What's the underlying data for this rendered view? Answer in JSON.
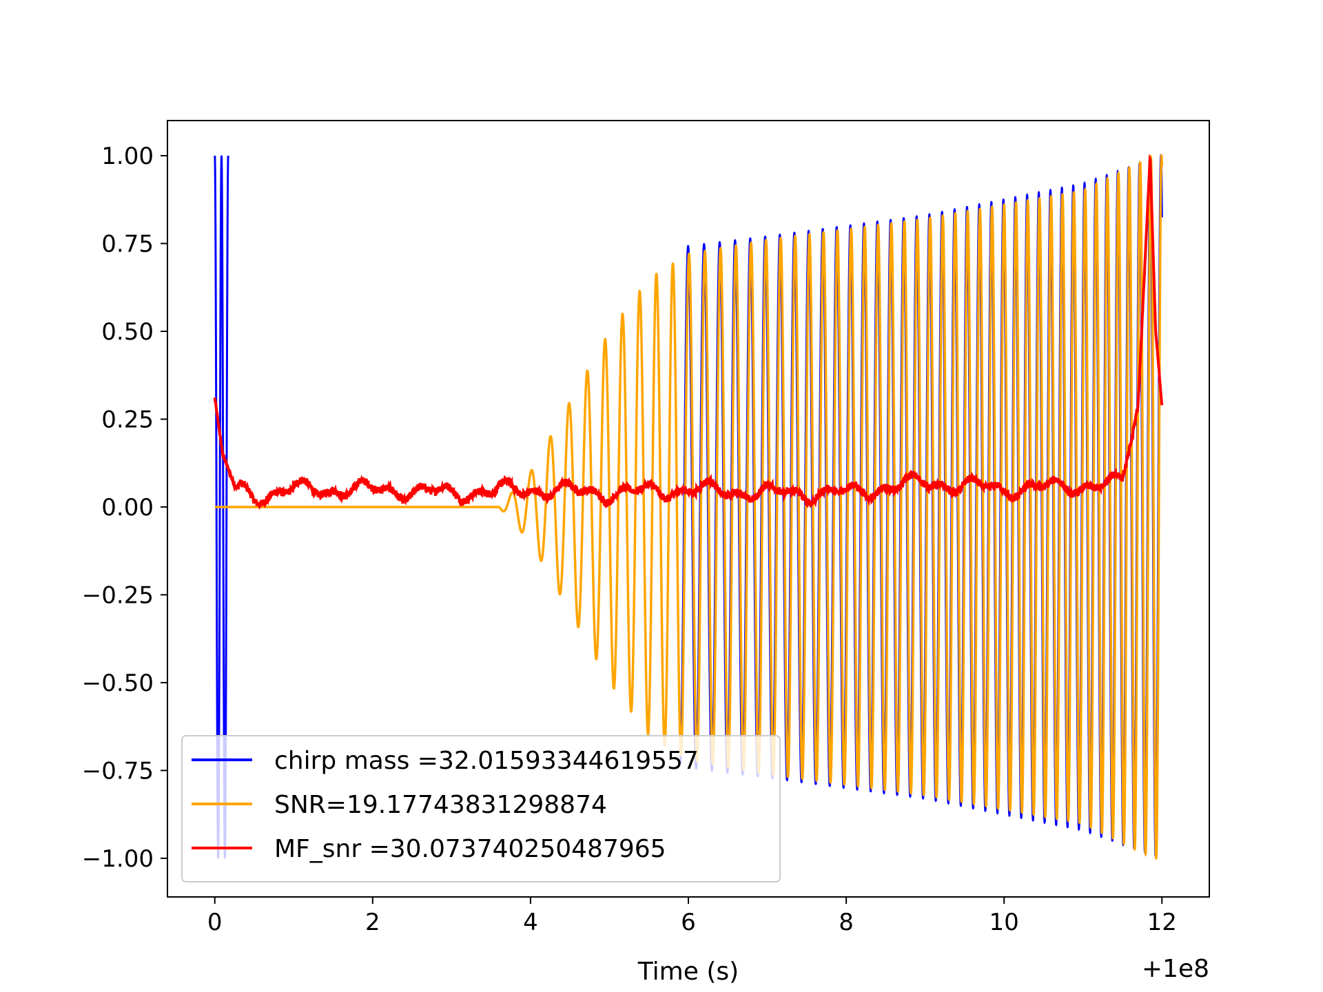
{
  "chart_data": {
    "type": "line",
    "title": "",
    "xlabel": "Time (s)",
    "ylabel": "",
    "x_offset_label": "+1e8",
    "xlim": [
      -0.6,
      12.6
    ],
    "ylim": [
      -1.11,
      1.1
    ],
    "xticks": [
      0,
      2,
      4,
      6,
      8,
      10,
      12
    ],
    "xtick_labels": [
      "0",
      "2",
      "4",
      "6",
      "8",
      "10",
      "12"
    ],
    "yticks": [
      1.0,
      0.75,
      0.5,
      0.25,
      0.0,
      -0.25,
      -0.5,
      -0.75,
      -1.0
    ],
    "ytick_labels": [
      "1.00",
      "0.75",
      "0.50",
      "0.25",
      "0.00",
      "−0.25",
      "−0.50",
      "−0.75",
      "−1.00"
    ],
    "grid": false,
    "legend_position": "lower-left",
    "series": [
      {
        "name": "chirp mass =32.01593344619557",
        "color": "#0000ff",
        "description_shape": "oscillation: spike 1 to -1 near t=0-0.15, then envelope ~0.75 from t=5.9 rising to 1.0 at t=12",
        "envelope_points": [
          [
            0.0,
            1.0
          ],
          [
            0.15,
            1.0
          ],
          [
            5.9,
            0.74
          ],
          [
            7.0,
            0.77
          ],
          [
            9.0,
            0.83
          ],
          [
            11.0,
            0.92
          ],
          [
            12.0,
            1.0
          ]
        ]
      },
      {
        "name": "SNR=19.17743831298874",
        "color": "#ffa500",
        "description_shape": "flat at 0 until t=3.6, then oscillation growing to 0.75 at t=6, rising to 1.0 at t=12",
        "envelope_points": [
          [
            0.0,
            0.0
          ],
          [
            3.6,
            0.0
          ],
          [
            4.0,
            0.1
          ],
          [
            4.5,
            0.3
          ],
          [
            5.0,
            0.5
          ],
          [
            5.5,
            0.65
          ],
          [
            6.0,
            0.72
          ],
          [
            7.0,
            0.76
          ],
          [
            9.0,
            0.82
          ],
          [
            11.0,
            0.9
          ],
          [
            11.9,
            1.0
          ]
        ]
      },
      {
        "name": "MF_snr =30.073740250487965",
        "color": "#ff0000",
        "description_shape": "starts at 0.31, decays to ~0.05, noisy near 0.04-0.08, peak 1.0 at t=11.85, ends at 0.29",
        "points": [
          [
            0.0,
            0.31
          ],
          [
            0.1,
            0.15
          ],
          [
            0.25,
            0.06
          ],
          [
            0.5,
            0.03
          ],
          [
            1.0,
            0.05
          ],
          [
            2.0,
            0.05
          ],
          [
            3.0,
            0.04
          ],
          [
            4.0,
            0.05
          ],
          [
            5.0,
            0.04
          ],
          [
            6.0,
            0.05
          ],
          [
            7.0,
            0.04
          ],
          [
            8.0,
            0.04
          ],
          [
            9.0,
            0.07
          ],
          [
            10.0,
            0.05
          ],
          [
            11.0,
            0.06
          ],
          [
            11.5,
            0.07
          ],
          [
            11.7,
            0.3
          ],
          [
            11.85,
            1.0
          ],
          [
            11.92,
            0.5
          ],
          [
            12.0,
            0.29
          ]
        ]
      }
    ]
  }
}
